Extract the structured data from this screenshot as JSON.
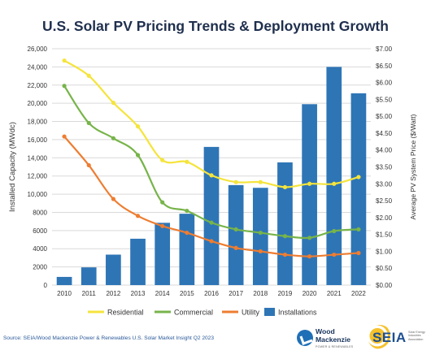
{
  "chart_data": {
    "type": "bar+line",
    "title": "U.S. Solar PV Pricing Trends & Deployment Growth",
    "ylabel_left": "Installed Capacity (MWdc)",
    "ylabel_right": "Average PV System Price ($/Watt)",
    "ylim_left": [
      0,
      26000
    ],
    "ylim_right": [
      0,
      7
    ],
    "left_ticks": [
      "0",
      "2000",
      "4000",
      "6000",
      "8000",
      "10,000",
      "12,000",
      "14,000",
      "16,000",
      "18,000",
      "20,000",
      "22,000",
      "24,000",
      "26,000"
    ],
    "right_ticks": [
      "$0.00",
      "$0.50",
      "$1.00",
      "$1.50",
      "$2.00",
      "$2.50",
      "$3.00",
      "$3.50",
      "$4.00",
      "$4.50",
      "$5.00",
      "$5.50",
      "$6.00",
      "$6.50",
      "$7.00"
    ],
    "categories": [
      "2010",
      "2011",
      "2012",
      "2013",
      "2014",
      "2015",
      "2016",
      "2017",
      "2018",
      "2019",
      "2020",
      "2021",
      "2022"
    ],
    "bars": {
      "name": "Installations",
      "color": "#2e75b6",
      "values": [
        900,
        1950,
        3350,
        5100,
        6850,
        7850,
        15200,
        11000,
        10700,
        13500,
        19900,
        24000,
        21100
      ]
    },
    "series": [
      {
        "name": "Residential",
        "color": "#f5e43c",
        "values": [
          6.65,
          6.2,
          5.4,
          4.7,
          3.7,
          3.65,
          3.25,
          3.05,
          3.05,
          2.9,
          3.0,
          3.0,
          3.2
        ]
      },
      {
        "name": "Commercial",
        "color": "#77b44a",
        "values": [
          5.9,
          4.8,
          4.35,
          3.85,
          2.45,
          2.2,
          1.85,
          1.65,
          1.55,
          1.45,
          1.4,
          1.6,
          1.65
        ]
      },
      {
        "name": "Utility",
        "color": "#ee7d31",
        "values": [
          4.4,
          3.55,
          2.55,
          2.05,
          1.75,
          1.55,
          1.3,
          1.1,
          1.0,
          0.9,
          0.85,
          0.9,
          0.95
        ]
      }
    ],
    "legend": [
      "Residential",
      "Commercial",
      "Utility",
      "Installations"
    ],
    "legend_position": "bottom",
    "grid": true
  },
  "source": "Source: SEIA/Wood Mackenzie Power & Renewables U.S. Solar Market Insight Q2 2023",
  "logos": {
    "wood_mackenzie": {
      "line1": "Wood",
      "line2": "Mackenzie",
      "sub": "POWER & RENEWABLES"
    },
    "seia": {
      "word": "SEIA",
      "tagline": "Solar Energy Industries Association"
    }
  }
}
